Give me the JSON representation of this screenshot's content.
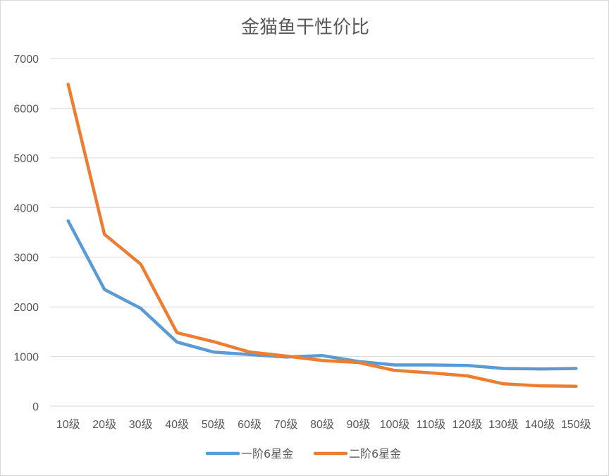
{
  "chart_data": {
    "type": "line",
    "title": "金猫鱼干性价比",
    "xlabel": "",
    "ylabel": "",
    "categories": [
      "10级",
      "20级",
      "30级",
      "40级",
      "50级",
      "60级",
      "70级",
      "80级",
      "90级",
      "100级",
      "110级",
      "120级",
      "130级",
      "140级",
      "150级"
    ],
    "ylim": [
      0,
      7000
    ],
    "yticks": [
      0,
      1000,
      2000,
      3000,
      4000,
      5000,
      6000,
      7000
    ],
    "grid": true,
    "legend_position": "bottom",
    "series": [
      {
        "name": "一阶6星金",
        "color": "#5B9BD5",
        "values": [
          3730,
          2350,
          1970,
          1290,
          1090,
          1040,
          990,
          1020,
          900,
          830,
          830,
          820,
          760,
          750,
          760
        ]
      },
      {
        "name": "二阶6星金",
        "color": "#ED7D31",
        "values": [
          6480,
          3460,
          2860,
          1480,
          1300,
          1090,
          1010,
          920,
          880,
          720,
          670,
          610,
          450,
          410,
          400
        ]
      }
    ]
  }
}
